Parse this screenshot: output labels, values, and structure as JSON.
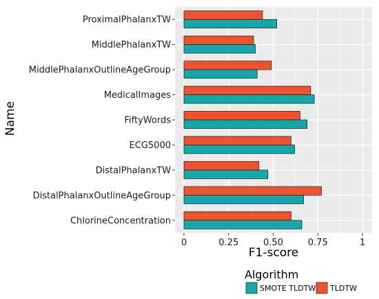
{
  "chart_data": {
    "type": "bar",
    "orientation": "horizontal",
    "xlabel": "F1-score",
    "ylabel": "Name",
    "xlim": [
      0,
      1.05
    ],
    "xticks": [
      0,
      0.25,
      0.5,
      0.75,
      1
    ],
    "xtick_labels": [
      "0",
      "0.25",
      "0.50",
      "0.75",
      "1"
    ],
    "grid": true,
    "legend_position": "bottom",
    "legend_title": "Algorithm",
    "categories": [
      "ProximalPhalanxTW",
      "MiddlePhalanxTW",
      "MiddlePhalanxOutlineAgeGroup",
      "MedicalImages",
      "FiftyWords",
      "ECG5000",
      "DistalPhalanxTW",
      "DistalPhalanxOutlineAgeGroup",
      "ChlorineConcentration"
    ],
    "series": [
      {
        "name": "SMOTE TLDTW",
        "color": "#14A8AC",
        "values": [
          0.52,
          0.4,
          0.41,
          0.73,
          0.69,
          0.62,
          0.47,
          0.67,
          0.66
        ]
      },
      {
        "name": "TLDTW",
        "color": "#F1522B",
        "values": [
          0.44,
          0.39,
          0.49,
          0.71,
          0.65,
          0.6,
          0.42,
          0.77,
          0.6
        ]
      }
    ]
  }
}
